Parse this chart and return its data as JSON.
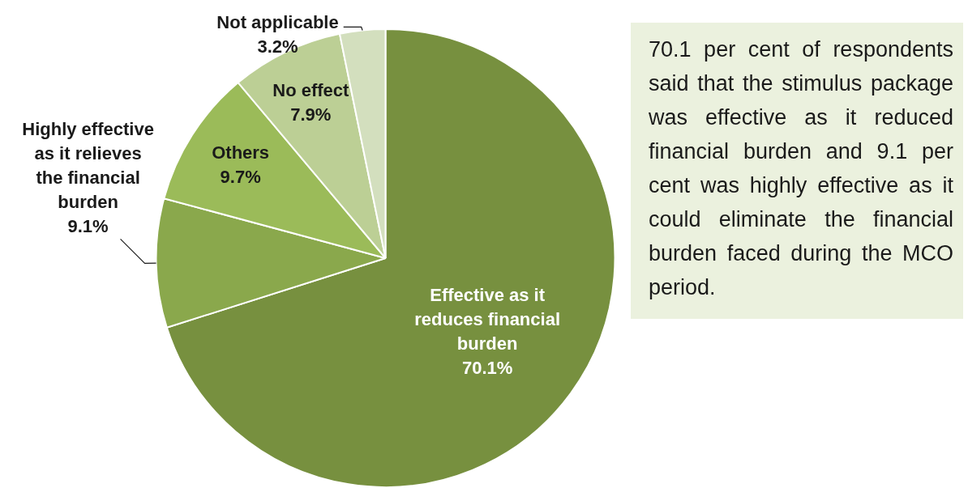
{
  "chart_data": {
    "type": "pie",
    "categories": [
      "Effective as it reduces financial burden",
      "Highly effective as it relieves the financial burden",
      "Others",
      "No effect",
      "Not applicable"
    ],
    "values": [
      70.1,
      9.1,
      9.7,
      7.9,
      3.2
    ],
    "colors": [
      "#77903f",
      "#8aa84c",
      "#9bbb59",
      "#bccf95",
      "#d3dfbe"
    ],
    "value_labels": [
      "70.1%",
      "9.1%",
      "9.7%",
      "7.9%",
      "3.2%"
    ],
    "legend": false,
    "annotations": [
      "70.1 per cent of respondents said that the stimulus package was effective as it reduced financial burden and 9.1 per cent was highly effective as it could eliminate the financial burden faced during the MCO period."
    ]
  }
}
